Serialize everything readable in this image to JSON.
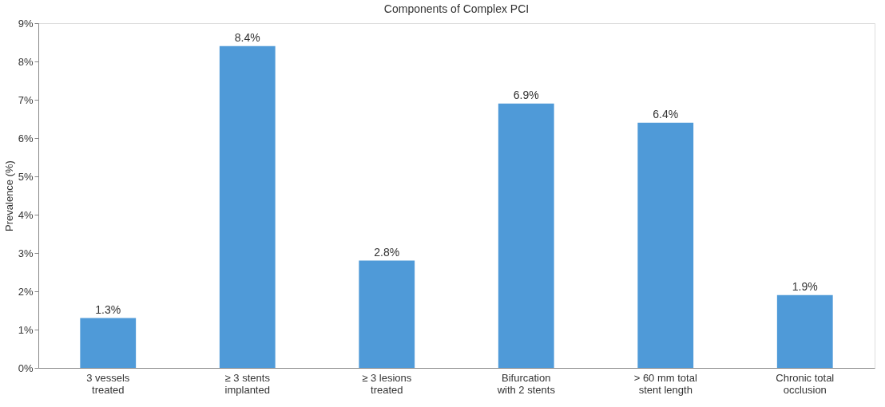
{
  "chart_data": {
    "type": "bar",
    "title": "Components of Complex PCI",
    "ylabel": "Prevalence (%)",
    "categories": [
      "3 vessels\ntreated",
      "≥ 3 stents\nimplanted",
      "≥ 3 lesions\ntreated",
      "Bifurcation\nwith 2 stents",
      "> 60 mm total\nstent length",
      "Chronic total\nocclusion"
    ],
    "values": [
      1.3,
      8.4,
      2.8,
      6.9,
      6.4,
      1.9
    ],
    "value_labels": [
      "1.3%",
      "8.4%",
      "2.8%",
      "6.9%",
      "6.4%",
      "1.9%"
    ],
    "color": "#4f9ad8",
    "ylim": [
      0,
      9
    ],
    "yticks": [
      {
        "value": 0,
        "label": "0%"
      },
      {
        "value": 1,
        "label": "1%"
      },
      {
        "value": 2,
        "label": "2%"
      },
      {
        "value": 3,
        "label": "3%"
      },
      {
        "value": 4,
        "label": "4%"
      },
      {
        "value": 5,
        "label": "5%"
      },
      {
        "value": 6,
        "label": "6%"
      },
      {
        "value": 7,
        "label": "7%"
      },
      {
        "value": 8,
        "label": "8%"
      },
      {
        "value": 9,
        "label": "9%"
      }
    ],
    "grid": false
  }
}
